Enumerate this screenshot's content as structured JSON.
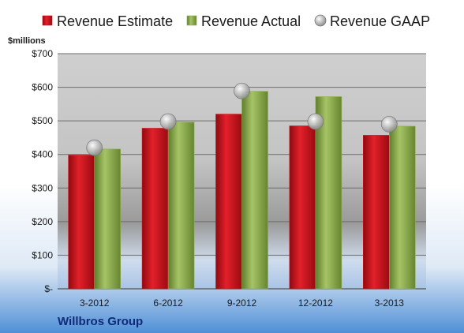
{
  "colors": {
    "estimate": "#d0111b",
    "actual": "#8fb04f",
    "gaap": "#b7b7b7",
    "company": "#0f2a78"
  },
  "chart_data": {
    "type": "bar",
    "title": "",
    "xlabel": "",
    "ylabel": "$millions",
    "company": "Willbros Group",
    "categories": [
      "3-2012",
      "6-2012",
      "9-2012",
      "12-2012",
      "3-2013"
    ],
    "series": [
      {
        "name": "Revenue Estimate",
        "kind": "bar",
        "values": [
          398,
          478,
          520,
          485,
          457
        ]
      },
      {
        "name": "Revenue Actual",
        "kind": "bar",
        "values": [
          416,
          496,
          588,
          572,
          484
        ]
      },
      {
        "name": "Revenue GAAP",
        "kind": "marker",
        "values": [
          420,
          498,
          589,
          498,
          490
        ]
      }
    ],
    "ylim": [
      0,
      700
    ],
    "yticks": [
      0,
      100,
      200,
      300,
      400,
      500,
      600,
      700
    ],
    "ytick_labels": [
      "$-",
      "$100",
      "$200",
      "$300",
      "$400",
      "$500",
      "$600",
      "$700"
    ],
    "grid": true,
    "legend": "top"
  }
}
